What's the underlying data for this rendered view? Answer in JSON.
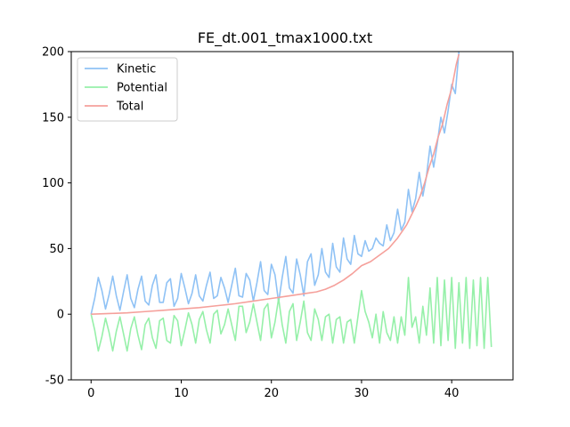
{
  "chart_data": {
    "type": "line",
    "title": "FE_dt.001_tmax1000.txt",
    "xlabel": "",
    "ylabel": "",
    "xlim": [
      -2.2,
      46.8
    ],
    "ylim": [
      -50,
      200
    ],
    "xticks": [
      0,
      10,
      20,
      30,
      40
    ],
    "yticks": [
      -50,
      0,
      50,
      100,
      150,
      200
    ],
    "grid": false,
    "legend_position": "top-left",
    "series": [
      {
        "name": "Kinetic",
        "color": "#8fc2f5",
        "x": [
          0,
          0.4,
          0.8,
          1.2,
          1.6,
          2.0,
          2.4,
          2.8,
          3.2,
          3.6,
          4.0,
          4.4,
          4.8,
          5.2,
          5.6,
          6.0,
          6.4,
          6.8,
          7.2,
          7.6,
          8.0,
          8.4,
          8.8,
          9.2,
          9.6,
          10.0,
          10.4,
          10.8,
          11.2,
          11.6,
          12.0,
          12.4,
          12.8,
          13.2,
          13.6,
          14.0,
          14.4,
          14.8,
          15.2,
          15.6,
          16.0,
          16.4,
          16.8,
          17.2,
          17.6,
          18.0,
          18.4,
          18.8,
          19.2,
          19.6,
          20.0,
          20.4,
          20.8,
          21.2,
          21.6,
          22.0,
          22.4,
          22.8,
          23.2,
          23.6,
          24.0,
          24.4,
          24.8,
          25.2,
          25.6,
          26.0,
          26.4,
          26.8,
          27.2,
          27.6,
          28.0,
          28.4,
          28.8,
          29.2,
          29.6,
          30.0,
          30.4,
          30.8,
          31.2,
          31.6,
          32.0,
          32.4,
          32.8,
          33.2,
          33.6,
          34.0,
          34.4,
          34.8,
          35.2,
          35.6,
          36.0,
          36.4,
          36.8,
          37.2,
          37.6,
          38.0,
          38.4,
          38.8,
          39.2,
          39.6,
          40.0,
          40.4,
          40.8
        ],
        "values": [
          0,
          12,
          28,
          18,
          4,
          15,
          29,
          14,
          3,
          17,
          30,
          12,
          5,
          19,
          29,
          10,
          7,
          22,
          30,
          9,
          9,
          24,
          27,
          6,
          12,
          31,
          20,
          8,
          16,
          30,
          14,
          10,
          22,
          32,
          12,
          14,
          28,
          20,
          9,
          22,
          35,
          14,
          13,
          31,
          26,
          10,
          24,
          40,
          18,
          15,
          38,
          30,
          9,
          28,
          44,
          20,
          16,
          42,
          30,
          14,
          40,
          46,
          22,
          30,
          50,
          32,
          28,
          54,
          36,
          32,
          58,
          42,
          38,
          60,
          46,
          44,
          56,
          48,
          50,
          58,
          54,
          52,
          68,
          56,
          62,
          80,
          64,
          70,
          95,
          78,
          88,
          108,
          90,
          105,
          128,
          112,
          130,
          150,
          138,
          155,
          175,
          168,
          200
        ]
      },
      {
        "name": "Potential",
        "color": "#96f0a9",
        "x": [
          0,
          0.4,
          0.8,
          1.2,
          1.6,
          2.0,
          2.4,
          2.8,
          3.2,
          3.6,
          4.0,
          4.4,
          4.8,
          5.2,
          5.6,
          6.0,
          6.4,
          6.8,
          7.2,
          7.6,
          8.0,
          8.4,
          8.8,
          9.2,
          9.6,
          10.0,
          10.4,
          10.8,
          11.2,
          11.6,
          12.0,
          12.4,
          12.8,
          13.2,
          13.6,
          14.0,
          14.4,
          14.8,
          15.2,
          15.6,
          16.0,
          16.4,
          16.8,
          17.2,
          17.6,
          18.0,
          18.4,
          18.8,
          19.2,
          19.6,
          20.0,
          20.4,
          20.8,
          21.2,
          21.6,
          22.0,
          22.4,
          22.8,
          23.2,
          23.6,
          24.0,
          24.4,
          24.8,
          25.2,
          25.6,
          26.0,
          26.4,
          26.8,
          27.2,
          27.6,
          28.0,
          28.4,
          28.8,
          29.2,
          29.6,
          30.0,
          30.4,
          30.8,
          31.2,
          31.6,
          32.0,
          32.4,
          32.8,
          33.2,
          33.6,
          34.0,
          34.4,
          34.8,
          35.2,
          35.6,
          36.0,
          36.4,
          36.8,
          37.2,
          37.6,
          38.0,
          38.4,
          38.8,
          39.2,
          39.6,
          40.0,
          40.4,
          40.8,
          41.2,
          41.6,
          42.0,
          42.4,
          42.8,
          43.2,
          43.6,
          44.0,
          44.4
        ],
        "values": [
          0,
          -12,
          -28,
          -17,
          -3,
          -14,
          -28,
          -13,
          -2,
          -15,
          -28,
          -11,
          -2,
          -16,
          -27,
          -8,
          -3,
          -18,
          -26,
          -5,
          -3,
          -20,
          -22,
          -1,
          -5,
          -24,
          -12,
          1,
          -8,
          -22,
          -4,
          2,
          -12,
          -22,
          0,
          3,
          -15,
          -8,
          4,
          -8,
          -20,
          6,
          6,
          -14,
          -6,
          8,
          -6,
          -20,
          4,
          8,
          -18,
          -6,
          12,
          -8,
          -22,
          2,
          8,
          -20,
          -6,
          10,
          -14,
          -20,
          4,
          -4,
          -20,
          -2,
          0,
          -22,
          -4,
          -2,
          -22,
          -6,
          -4,
          -22,
          -2,
          18,
          2,
          -6,
          -18,
          0,
          -22,
          2,
          -14,
          -20,
          -2,
          -22,
          -2,
          -16,
          28,
          -10,
          -2,
          -22,
          6,
          -16,
          20,
          -22,
          28,
          -24,
          26,
          -20,
          28,
          -26,
          24,
          -22,
          28,
          -26,
          26,
          -24,
          28,
          -26,
          28,
          -25
        ]
      },
      {
        "name": "Total",
        "color": "#f5a09b",
        "x": [
          0,
          2,
          4,
          6,
          8,
          10,
          12,
          14,
          16,
          18,
          20,
          22,
          24,
          25,
          26,
          27,
          28,
          29,
          30,
          31,
          32,
          33,
          34,
          35,
          35.5,
          36,
          36.5,
          37,
          37.5,
          38,
          38.5,
          39,
          39.5,
          40,
          40.5,
          40.8
        ],
        "values": [
          0,
          0.5,
          1,
          2,
          3,
          4,
          5,
          6.5,
          8,
          10,
          12,
          14,
          16,
          17,
          19,
          22,
          26,
          31,
          37,
          40,
          45,
          50,
          58,
          68,
          75,
          82,
          90,
          100,
          112,
          122,
          135,
          145,
          160,
          172,
          190,
          198
        ]
      }
    ]
  }
}
